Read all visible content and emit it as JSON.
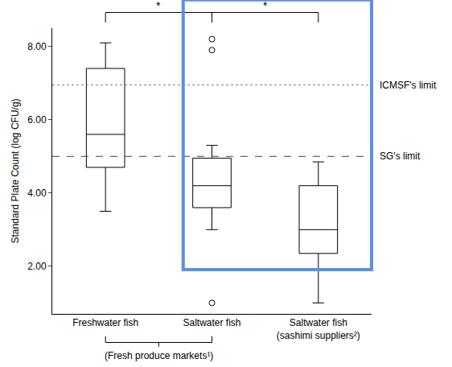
{
  "chart_data": {
    "type": "box",
    "y_label": "Standard Plate Count (log CFU/g)",
    "categories": [
      "Freshwater fish",
      "Saltwater fish",
      "Saltwater fish\n(sashimi suppliers²)"
    ],
    "upper": [
      8.1,
      5.3,
      4.85
    ],
    "q3": [
      7.4,
      4.95,
      4.2
    ],
    "median": [
      5.6,
      4.2,
      3.0
    ],
    "q1": [
      4.7,
      3.6,
      2.35
    ],
    "lower": [
      3.5,
      3.0,
      1.0
    ],
    "outliers": [
      [],
      [
        8.2,
        7.9,
        1.0
      ],
      []
    ],
    "color": "#000000",
    "marker": "open circle",
    "ylim": [
      0.7,
      8.5
    ],
    "yticks": [
      {
        "value": 2,
        "label": "2.00"
      },
      {
        "value": 4,
        "label": "4.00"
      },
      {
        "value": 6,
        "label": "6.00"
      },
      {
        "value": 8,
        "label": "8.00"
      }
    ],
    "grid": false,
    "reference_lines": [
      {
        "label": "ICMSF's limit",
        "value": 6.95,
        "line_style": "dotted",
        "color": "#808080"
      },
      {
        "label": "SG's limit",
        "value": 5.0,
        "line_style": "dashed",
        "color": "#404040"
      }
    ],
    "comparisons": [
      {
        "between": [
          "Freshwater fish",
          "Saltwater fish"
        ],
        "label": "*"
      },
      {
        "between": [
          "Saltwater fish",
          "Saltwater fish\n(sashimi suppliers²)"
        ],
        "label": "*"
      }
    ],
    "groups": [
      {
        "label": "(Fresh produce markets¹)",
        "categories": [
          "Freshwater fish",
          "Saltwater fish"
        ]
      }
    ]
  }
}
